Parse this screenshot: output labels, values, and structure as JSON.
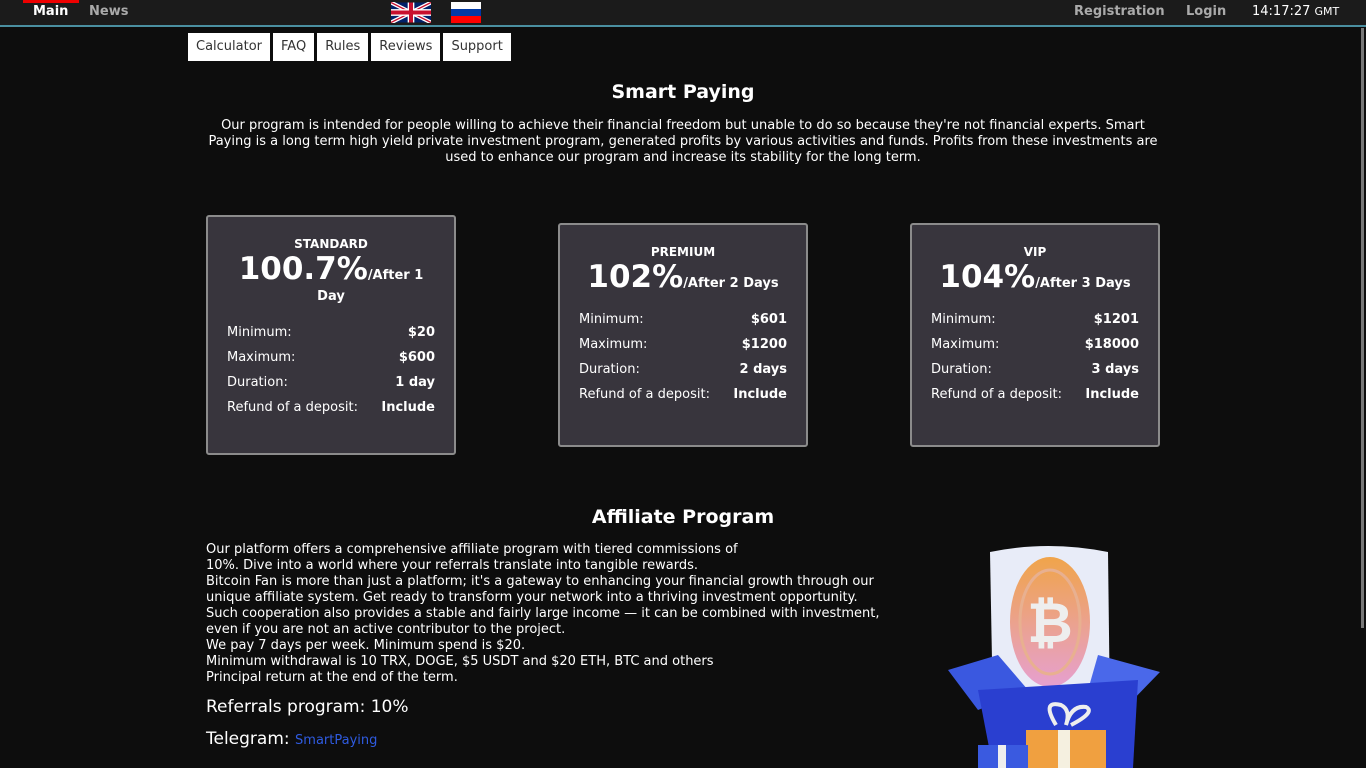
{
  "topbar": {
    "nav": [
      "Main",
      "News"
    ],
    "registration": "Registration",
    "login": "Login",
    "time": "14:17:27",
    "tz": "GMT",
    "flags": [
      "uk-flag",
      "russia-flag"
    ]
  },
  "subnav": [
    "Calculator",
    "FAQ",
    "Rules",
    "Reviews",
    "Support"
  ],
  "title": "Smart Paying",
  "intro": "Our program is intended for people willing to achieve their financial freedom but unable to do so because they're not financial experts. Smart Paying is a long term high yield private investment program, generated profits by various activities and funds. Profits from these investments are used to enhance our program and increase its stability for the long term.",
  "plans": [
    {
      "name": "STANDARD",
      "rate": "100.7%",
      "after": "/After 1 Day",
      "rows": [
        [
          "Minimum:",
          "$20"
        ],
        [
          "Maximum:",
          "$600"
        ],
        [
          "Duration:",
          "1 day"
        ],
        [
          "Refund of a deposit:",
          "Include"
        ]
      ]
    },
    {
      "name": "PREMIUM",
      "rate": "102%",
      "after": "/After 2 Days",
      "rows": [
        [
          "Minimum:",
          "$601"
        ],
        [
          "Maximum:",
          "$1200"
        ],
        [
          "Duration:",
          "2 days"
        ],
        [
          "Refund of a deposit:",
          "Include"
        ]
      ]
    },
    {
      "name": "VIP",
      "rate": "104%",
      "after": "/After 3 Days",
      "rows": [
        [
          "Minimum:",
          "$1201"
        ],
        [
          "Maximum:",
          "$18000"
        ],
        [
          "Duration:",
          "3 days"
        ],
        [
          "Refund of a deposit:",
          "Include"
        ]
      ]
    }
  ],
  "affiliate": {
    "title": "Affiliate Program",
    "lines": [
      "Our platform offers a comprehensive affiliate program with tiered commissions of",
      "10%. Dive into a world where your referrals translate into tangible rewards.",
      "Bitcoin Fan is more than just a platform; it's a gateway to enhancing your financial growth through our",
      "unique affiliate system. Get ready to transform your network into a thriving investment opportunity.",
      "Such cooperation also provides a stable and fairly large income — it can be combined with investment,",
      "even if you are not an active contributor to the project.",
      "We pay 7 days per week. Minimum spend is $20.",
      "Minimum withdrawal is 10 TRX, DOGE, $5 USDT and $20 ETH, BTC and others",
      "Principal return at the end of the term."
    ],
    "referrals": "Referrals program: 10%",
    "telegram_label": "Telegram:",
    "telegram_link": "SmartPaying"
  },
  "colors": {
    "accent_line": "#4a8fa0",
    "active_marker": "#ee0000",
    "card_bg": "#38353d",
    "link": "#2f5be0"
  }
}
